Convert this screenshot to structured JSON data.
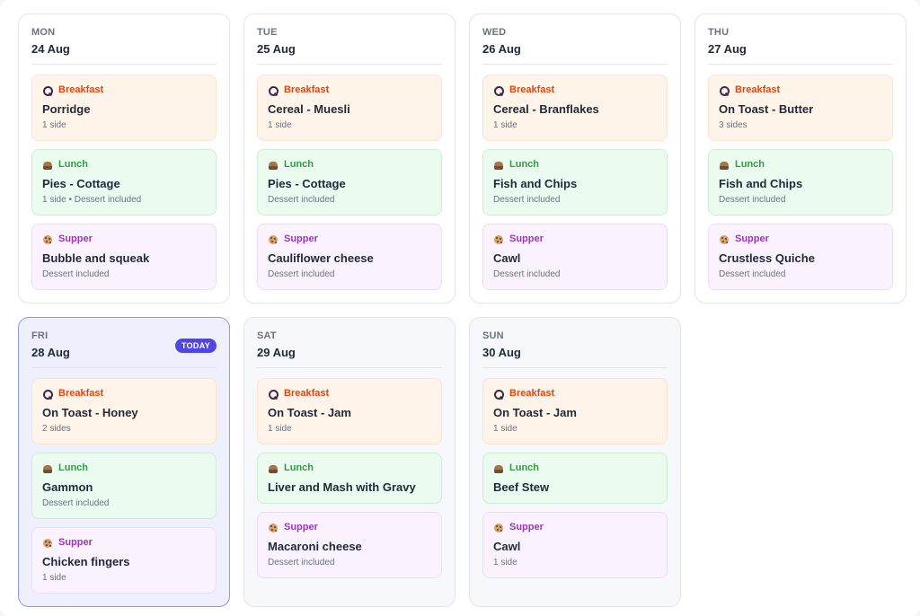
{
  "days": [
    {
      "dow": "MON",
      "date": "24 Aug",
      "today": false,
      "weekend": false,
      "meals": [
        {
          "kind": "breakfast",
          "type": "Breakfast",
          "icon": "cereal-bowl-icon",
          "dish": "Porridge",
          "note": "1 side"
        },
        {
          "kind": "lunch",
          "type": "Lunch",
          "icon": "pie-icon",
          "dish": "Pies - Cottage",
          "note": "1 side • Dessert included"
        },
        {
          "kind": "supper",
          "type": "Supper",
          "icon": "cookie-icon",
          "dish": "Bubble and squeak",
          "note": "Dessert included"
        }
      ]
    },
    {
      "dow": "TUE",
      "date": "25 Aug",
      "today": false,
      "weekend": false,
      "meals": [
        {
          "kind": "breakfast",
          "type": "Breakfast",
          "icon": "cereal-bowl-icon",
          "dish": "Cereal - Muesli",
          "note": "1 side"
        },
        {
          "kind": "lunch",
          "type": "Lunch",
          "icon": "pie-icon",
          "dish": "Pies - Cottage",
          "note": "Dessert included"
        },
        {
          "kind": "supper",
          "type": "Supper",
          "icon": "cookie-icon",
          "dish": "Cauliflower cheese",
          "note": "Dessert included"
        }
      ]
    },
    {
      "dow": "WED",
      "date": "26 Aug",
      "today": false,
      "weekend": false,
      "meals": [
        {
          "kind": "breakfast",
          "type": "Breakfast",
          "icon": "cereal-bowl-icon",
          "dish": "Cereal - Branflakes",
          "note": "1 side"
        },
        {
          "kind": "lunch",
          "type": "Lunch",
          "icon": "pie-icon",
          "dish": "Fish and Chips",
          "note": "Dessert included"
        },
        {
          "kind": "supper",
          "type": "Supper",
          "icon": "cookie-icon",
          "dish": "Cawl",
          "note": "Dessert included"
        }
      ]
    },
    {
      "dow": "THU",
      "date": "27 Aug",
      "today": false,
      "weekend": false,
      "meals": [
        {
          "kind": "breakfast",
          "type": "Breakfast",
          "icon": "cereal-bowl-icon",
          "dish": "On Toast - Butter",
          "note": "3 sides"
        },
        {
          "kind": "lunch",
          "type": "Lunch",
          "icon": "pie-icon",
          "dish": "Fish and Chips",
          "note": "Dessert included"
        },
        {
          "kind": "supper",
          "type": "Supper",
          "icon": "cookie-icon",
          "dish": "Crustless Quiche",
          "note": "Dessert included"
        }
      ]
    },
    {
      "dow": "FRI",
      "date": "28 Aug",
      "today": true,
      "today_label": "TODAY",
      "weekend": false,
      "meals": [
        {
          "kind": "breakfast",
          "type": "Breakfast",
          "icon": "cereal-bowl-icon",
          "dish": "On Toast - Honey",
          "note": "2 sides"
        },
        {
          "kind": "lunch",
          "type": "Lunch",
          "icon": "pie-icon",
          "dish": "Gammon",
          "note": "Dessert included"
        },
        {
          "kind": "supper",
          "type": "Supper",
          "icon": "cookie-icon",
          "dish": "Chicken fingers",
          "note": "1 side"
        }
      ]
    },
    {
      "dow": "SAT",
      "date": "29 Aug",
      "today": false,
      "weekend": true,
      "meals": [
        {
          "kind": "breakfast",
          "type": "Breakfast",
          "icon": "cereal-bowl-icon",
          "dish": "On Toast - Jam",
          "note": "1 side"
        },
        {
          "kind": "lunch",
          "type": "Lunch",
          "icon": "pie-icon",
          "dish": "Liver and Mash with Gravy",
          "note": ""
        },
        {
          "kind": "supper",
          "type": "Supper",
          "icon": "cookie-icon",
          "dish": "Macaroni cheese",
          "note": "Dessert included"
        }
      ]
    },
    {
      "dow": "SUN",
      "date": "30 Aug",
      "today": false,
      "weekend": true,
      "meals": [
        {
          "kind": "breakfast",
          "type": "Breakfast",
          "icon": "cereal-bowl-icon",
          "dish": "On Toast - Jam",
          "note": "1 side"
        },
        {
          "kind": "lunch",
          "type": "Lunch",
          "icon": "pie-icon",
          "dish": "Beef Stew",
          "note": ""
        },
        {
          "kind": "supper",
          "type": "Supper",
          "icon": "cookie-icon",
          "dish": "Cawl",
          "note": "1 side"
        }
      ]
    }
  ],
  "colors": {
    "breakfast": "#d9480f",
    "lunch": "#2f9e44",
    "supper": "#9c36b5",
    "today_accent": "#4f46e5"
  }
}
